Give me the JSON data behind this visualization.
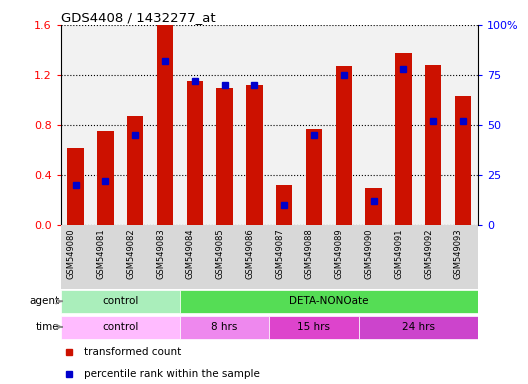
{
  "title": "GDS4408 / 1432277_at",
  "samples": [
    "GSM549080",
    "GSM549081",
    "GSM549082",
    "GSM549083",
    "GSM549084",
    "GSM549085",
    "GSM549086",
    "GSM549087",
    "GSM549088",
    "GSM549089",
    "GSM549090",
    "GSM549091",
    "GSM549092",
    "GSM549093"
  ],
  "red_values": [
    0.62,
    0.75,
    0.87,
    1.6,
    1.15,
    1.1,
    1.12,
    0.32,
    0.77,
    1.27,
    0.3,
    1.38,
    1.28,
    1.03
  ],
  "blue_percentiles": [
    20,
    22,
    45,
    82,
    72,
    70,
    70,
    10,
    45,
    75,
    12,
    78,
    52,
    52
  ],
  "ylim_left": [
    0,
    1.6
  ],
  "ylim_right": [
    0,
    100
  ],
  "yticks_left": [
    0,
    0.4,
    0.8,
    1.2,
    1.6
  ],
  "yticks_right": [
    0,
    25,
    50,
    75,
    100
  ],
  "ytick_labels_right": [
    "0",
    "25",
    "50",
    "75",
    "100%"
  ],
  "bar_color": "#CC1100",
  "blue_color": "#0000CC",
  "agent_groups": [
    {
      "label": "control",
      "start": 0,
      "end": 4,
      "color": "#AAEEBB"
    },
    {
      "label": "DETA-NONOate",
      "start": 4,
      "end": 14,
      "color": "#55DD55"
    }
  ],
  "time_groups": [
    {
      "label": "control",
      "start": 0,
      "end": 4,
      "color": "#FFBBFF"
    },
    {
      "label": "8 hrs",
      "start": 4,
      "end": 7,
      "color": "#EE88EE"
    },
    {
      "label": "15 hrs",
      "start": 7,
      "end": 10,
      "color": "#DD44CC"
    },
    {
      "label": "24 hrs",
      "start": 10,
      "end": 14,
      "color": "#CC44CC"
    }
  ],
  "legend_items": [
    {
      "label": "transformed count",
      "color": "#CC1100"
    },
    {
      "label": "percentile rank within the sample",
      "color": "#0000CC"
    }
  ]
}
